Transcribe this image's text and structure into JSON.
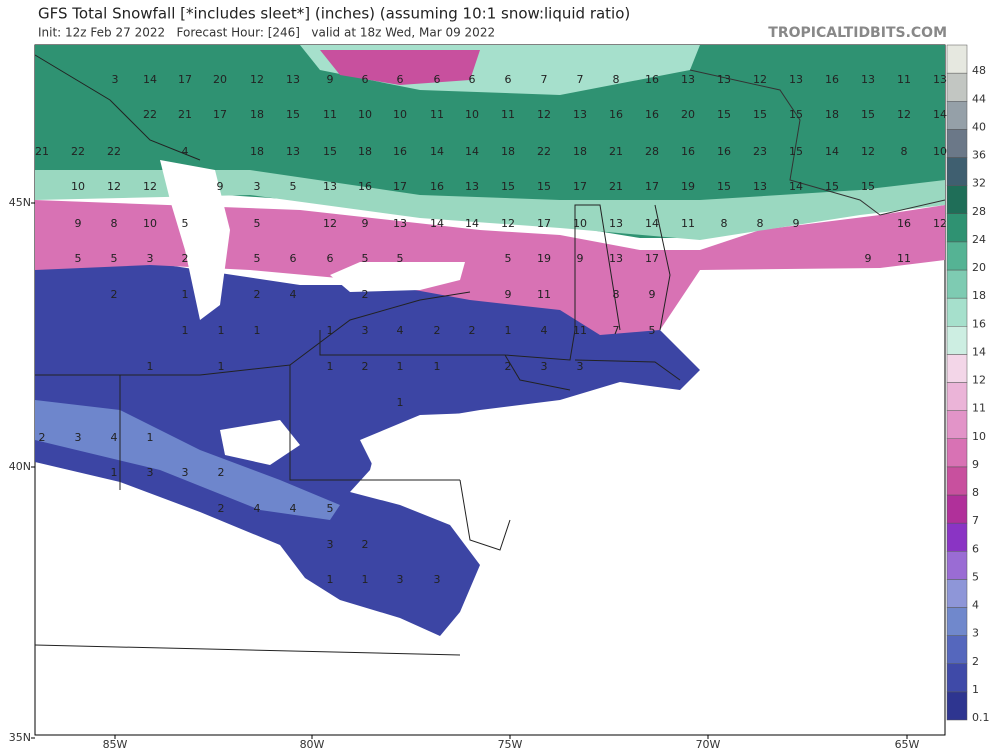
{
  "title": "GFS Total Snowfall [*includes sleet*] (inches) (assuming 10:1 snow:liquid ratio)",
  "subtitle": "Init: 12z Feb 27 2022   Forecast Hour: [246]   valid at 18z Wed, Mar 09 2022",
  "source": "TROPICALTIDBITS.COM",
  "lat_labels": [
    "45N",
    "40N",
    "35N"
  ],
  "lon_labels": [
    "85W",
    "80W",
    "75W",
    "70W",
    "65W"
  ],
  "colorbar": {
    "ticks": [
      0.1,
      1,
      2,
      3,
      4,
      5,
      6,
      7,
      8,
      9,
      10,
      11,
      12,
      14,
      16,
      18,
      20,
      24,
      28,
      32,
      36,
      40,
      44,
      48
    ],
    "colors": [
      "#2e3590",
      "#3f4aa8",
      "#5567bd",
      "#7088cc",
      "#8e96d8",
      "#9a6cd4",
      "#8a34c4",
      "#b0309a",
      "#c8509e",
      "#d872b4",
      "#e294c8",
      "#ebb4d8",
      "#f3d6e8",
      "#cdeee2",
      "#a6e0cc",
      "#7ecbb2",
      "#55b394",
      "#2f9272",
      "#1f6e58",
      "#3f5f70",
      "#6b7888",
      "#95a0a8",
      "#c2c6c2",
      "#e6e8e0"
    ]
  },
  "map_labels": [
    3,
    14,
    17,
    20,
    12,
    13,
    9,
    6,
    6,
    6,
    6,
    6,
    7,
    7,
    8,
    16,
    13,
    13,
    12,
    13,
    16,
    13,
    11,
    13,
    22,
    21,
    17,
    18,
    15,
    11,
    10,
    10,
    11,
    10,
    11,
    12,
    13,
    16,
    16,
    20,
    15,
    15,
    15,
    18,
    15,
    12,
    14,
    21,
    22,
    22,
    4,
    18,
    13,
    15,
    18,
    16,
    14,
    14,
    18,
    22,
    18,
    21,
    28,
    16,
    16,
    23,
    15,
    14,
    12,
    8,
    10,
    10,
    12,
    12,
    9,
    3,
    5,
    13,
    16,
    17,
    16,
    13,
    15,
    15,
    17,
    21,
    17,
    19,
    15,
    13,
    14,
    15,
    15,
    9,
    8,
    10,
    5,
    5,
    12,
    9,
    13,
    14,
    14,
    12,
    17,
    10,
    13,
    14,
    11,
    8,
    8,
    9,
    16,
    12,
    5,
    5,
    3,
    2,
    5,
    6,
    6,
    5,
    5,
    5,
    19,
    9,
    13,
    17,
    9,
    11,
    2,
    1,
    2,
    4,
    2,
    9,
    11,
    8,
    9,
    1,
    1,
    1,
    1,
    3,
    4,
    2,
    2,
    1,
    4,
    11,
    7,
    5,
    1,
    1,
    1,
    2,
    1,
    1,
    2,
    3,
    3,
    1,
    2,
    3,
    4,
    1,
    1,
    3,
    3,
    2,
    2,
    4,
    4,
    5,
    3,
    2,
    1,
    1,
    3,
    3
  ]
}
